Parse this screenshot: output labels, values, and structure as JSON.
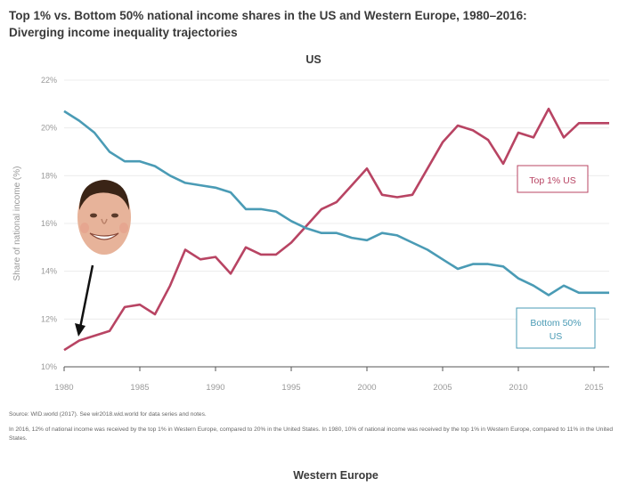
{
  "header": {
    "title_line1": "Top 1% vs. Bottom 50% national income shares in the US and Western Europe, 1980–2016:",
    "title_line2": "Diverging income inequality trajectories"
  },
  "panel": {
    "title": "US",
    "next_panel_title": "Western Europe"
  },
  "footer": {
    "source": "Source: WID.world (2017). See wir2018.wid.world for data series and notes.",
    "note": "In 2016, 12% of national income was received by the top 1% in Western Europe, compared to 20% in the United States. In 1980, 10% of national income was received by the top 1% in Western Europe, compared to 11% in the United States."
  },
  "colors": {
    "top": "#b84463",
    "bottom": "#4a9bb5",
    "axis": "#555555",
    "tick": "#999999"
  },
  "chart_data": {
    "type": "line",
    "title": "US",
    "xlabel": "",
    "ylabel": "Share of national income (%)",
    "xlim": [
      1980,
      2016
    ],
    "ylim": [
      10,
      22
    ],
    "xticks": [
      1980,
      1985,
      1990,
      1995,
      2000,
      2005,
      2010,
      2015
    ],
    "yticks": [
      10,
      12,
      14,
      16,
      18,
      20,
      22
    ],
    "ytick_labels": [
      "10%",
      "12%",
      "14%",
      "16%",
      "18%",
      "20%",
      "22%"
    ],
    "x": [
      1980,
      1981,
      1982,
      1983,
      1984,
      1985,
      1986,
      1987,
      1988,
      1989,
      1990,
      1991,
      1992,
      1993,
      1994,
      1995,
      1996,
      1997,
      1998,
      1999,
      2000,
      2001,
      2002,
      2003,
      2004,
      2005,
      2006,
      2007,
      2008,
      2009,
      2010,
      2011,
      2012,
      2013,
      2014,
      2015,
      2016
    ],
    "series": [
      {
        "name": "Top 1% US",
        "label": "Top 1% US",
        "values": [
          10.7,
          11.1,
          11.3,
          11.5,
          12.5,
          12.6,
          12.2,
          13.4,
          14.9,
          14.5,
          14.6,
          13.9,
          15.0,
          14.7,
          14.7,
          15.2,
          15.9,
          16.6,
          16.9,
          17.6,
          18.3,
          17.2,
          17.1,
          17.2,
          18.3,
          19.4,
          20.1,
          19.9,
          19.5,
          18.5,
          19.8,
          19.6,
          20.8,
          19.6,
          20.2,
          20.2,
          20.2
        ]
      },
      {
        "name": "Bottom 50% US",
        "label_line1": "Bottom 50%",
        "label_line2": "US",
        "values": [
          20.7,
          20.3,
          19.8,
          19.0,
          18.6,
          18.6,
          18.4,
          18.0,
          17.7,
          17.6,
          17.5,
          17.3,
          16.6,
          16.6,
          16.5,
          16.1,
          15.8,
          15.6,
          15.6,
          15.4,
          15.3,
          15.6,
          15.5,
          15.2,
          14.9,
          14.5,
          14.1,
          14.3,
          14.3,
          14.2,
          13.7,
          13.4,
          13.0,
          13.4,
          13.1,
          13.1,
          13.1
        ]
      }
    ]
  }
}
